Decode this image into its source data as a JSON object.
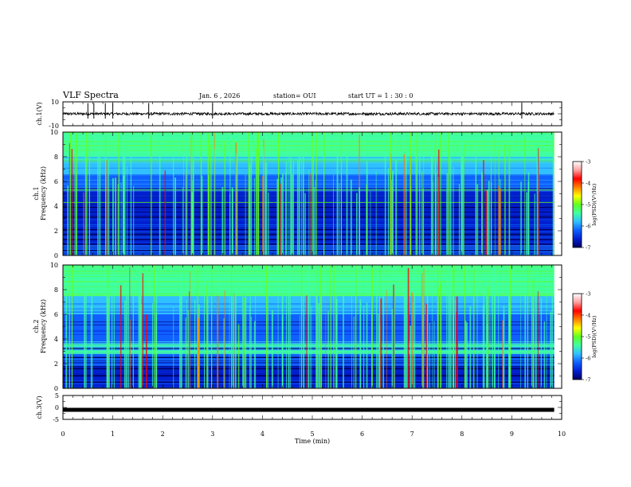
{
  "header": {
    "title": "VLF Spectra",
    "date": "Jan. 6 , 2026",
    "station": "station= OUI",
    "start_ut": "start  UT =  1 : 30 : 0"
  },
  "colors": {
    "background": "#ffffff",
    "axis": "#000000",
    "colormap": [
      "#000060",
      "#0020d0",
      "#1060ff",
      "#30c0ff",
      "#40ffa0",
      "#60ff20",
      "#ffff00",
      "#ff8000",
      "#ff0000",
      "#ffa0a0",
      "#ffffff"
    ]
  },
  "chart_data": [
    {
      "type": "line",
      "panel": "ch1-waveform",
      "ylabel": "ch.1(V)",
      "ylim": [
        -10,
        10
      ],
      "yticks": [
        "10",
        "-10"
      ],
      "xlim": [
        0,
        10
      ],
      "baseline": 0,
      "spike_times": [
        0.5,
        0.62,
        0.85,
        1.0,
        1.72,
        3.0,
        9.2
      ]
    },
    {
      "type": "heatmap",
      "panel": "ch1-spectrogram",
      "ylabel_line1": "ch.1",
      "ylabel_line2": "Frequency  (kHz)",
      "ylim": [
        0,
        10
      ],
      "yticks": [
        "0",
        "2",
        "4",
        "6",
        "8",
        "10"
      ],
      "xlim": [
        0,
        10
      ],
      "data_end_min": 9.85,
      "colorbar": {
        "label": "log(PSD)(V²/Hz)",
        "range": [
          -7,
          -3
        ],
        "ticks": [
          "-3",
          "-4",
          "-5",
          "-6",
          "-7"
        ]
      },
      "noise_lines_khz": [
        0.4,
        0.9,
        1.3,
        1.7,
        2.1,
        3.1,
        3.9
      ],
      "bright_lines_khz": [
        4.3,
        5.3
      ]
    },
    {
      "type": "heatmap",
      "panel": "ch2-spectrogram",
      "ylabel_line1": "ch.2",
      "ylabel_line2": "Frequency  (kHz)",
      "ylim": [
        0,
        10
      ],
      "yticks": [
        "0",
        "2",
        "4",
        "6",
        "8",
        "10"
      ],
      "xlim": [
        0,
        10
      ],
      "data_end_min": 9.85,
      "colorbar": {
        "label": "log(PSD)(V²/Hz)",
        "range": [
          -7,
          -3
        ],
        "ticks": [
          "-3",
          "-4",
          "-5",
          "-6",
          "-7"
        ]
      },
      "noise_lines_khz": [
        0.5,
        1.0,
        1.6,
        2.5
      ],
      "bright_band_khz": [
        2.8,
        3.8
      ]
    },
    {
      "type": "line",
      "panel": "ch3-waveform",
      "ylabel": "ch.3(V)",
      "ylim": [
        -5,
        5
      ],
      "yticks": [
        "5",
        "0",
        "-5"
      ],
      "xlim": [
        0,
        10
      ],
      "level": -1,
      "xlabel": "Time  (min)",
      "xticks": [
        "0",
        "1",
        "2",
        "3",
        "4",
        "5",
        "6",
        "7",
        "8",
        "9",
        "10"
      ]
    }
  ]
}
